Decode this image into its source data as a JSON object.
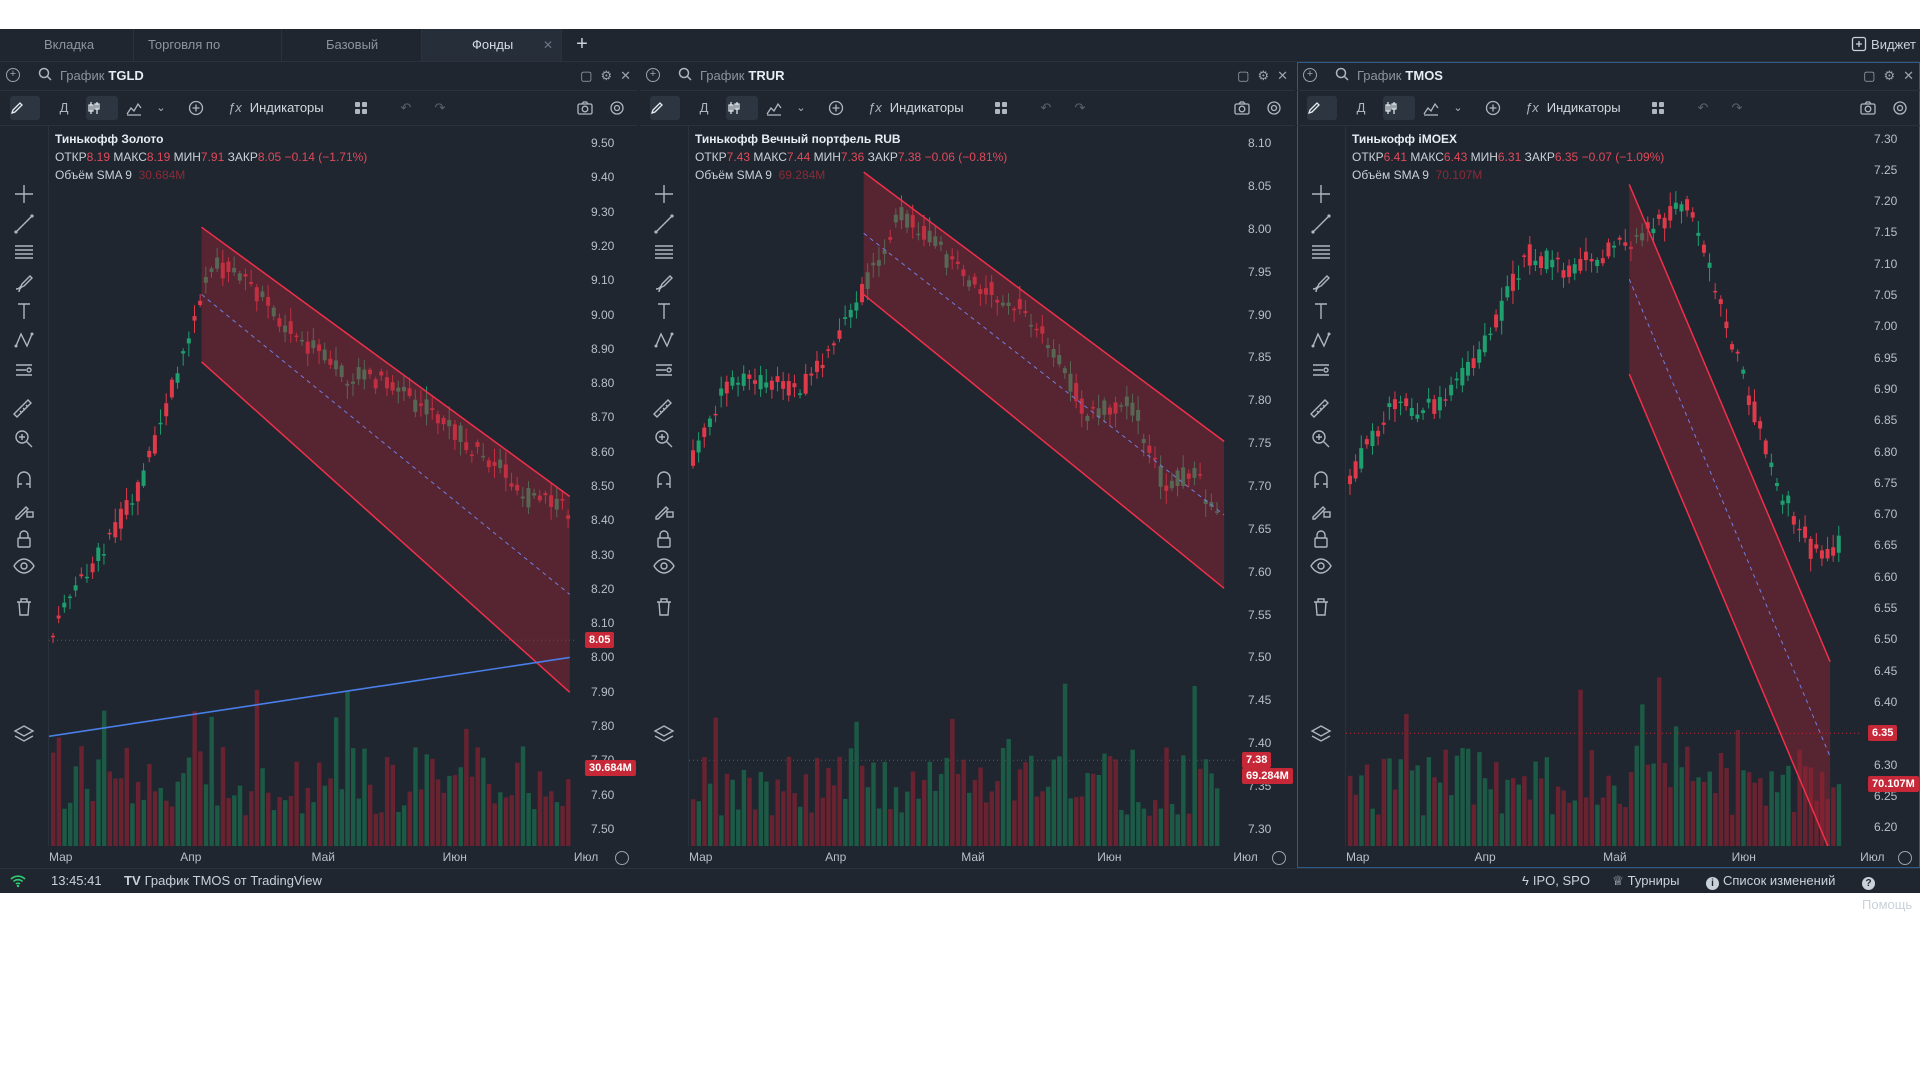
{
  "tabs": [
    {
      "label": "Вкладка"
    },
    {
      "label": "Торговля по инстр..."
    },
    {
      "label": "Базовый"
    },
    {
      "label": "Фонды",
      "active": true
    }
  ],
  "widgets_label": "Виджет",
  "toolbar": {
    "interval": "Д",
    "indicators_label": "Индикаторы"
  },
  "panels": [
    {
      "header_label": "График",
      "ticker": "TGLD",
      "name": "Тинькофф Золото",
      "ohlc": {
        "open_label": "ОТКР",
        "open": "8.19",
        "high_label": "МАКС",
        "high": "8.19",
        "low_label": "МИН",
        "low": "7.91",
        "close_label": "ЗАКР",
        "close": "8.05",
        "change": "−0.14 (−1.71%)"
      },
      "volume_label": "Объём SMA 9",
      "volume_value": "30.684M",
      "price_badge": "8.05",
      "volume_badge": "30.684M",
      "y_ticks": [
        "9.50",
        "9.40",
        "9.30",
        "9.20",
        "9.10",
        "9.00",
        "8.90",
        "8.80",
        "8.70",
        "8.60",
        "8.50",
        "8.40",
        "8.30",
        "8.20",
        "8.10",
        "8.00",
        "7.90",
        "7.80",
        "7.70",
        "7.60",
        "7.50"
      ],
      "x_ticks": [
        "Мар",
        "Апр",
        "Май",
        "Июн",
        "Июл"
      ]
    },
    {
      "header_label": "График",
      "ticker": "TRUR",
      "name": "Тинькофф Вечный портфель RUB",
      "ohlc": {
        "open_label": "ОТКР",
        "open": "7.43",
        "high_label": "МАКС",
        "high": "7.44",
        "low_label": "МИН",
        "low": "7.36",
        "close_label": "ЗАКР",
        "close": "7.38",
        "change": "−0.06 (−0.81%)"
      },
      "volume_label": "Объём SMA 9",
      "volume_value": "69.284M",
      "price_badge": "7.38",
      "volume_badge": "69.284M",
      "y_ticks": [
        "8.10",
        "8.05",
        "8.00",
        "7.95",
        "7.90",
        "7.85",
        "7.80",
        "7.75",
        "7.70",
        "7.65",
        "7.60",
        "7.55",
        "7.50",
        "7.45",
        "7.40",
        "7.35",
        "7.30"
      ],
      "x_ticks": [
        "Мар",
        "Апр",
        "Май",
        "Июн",
        "Июл"
      ]
    },
    {
      "header_label": "График",
      "ticker": "TMOS",
      "name": "Тинькофф iMOEX",
      "ohlc": {
        "open_label": "ОТКР",
        "open": "6.41",
        "high_label": "МАКС",
        "high": "6.43",
        "low_label": "МИН",
        "low": "6.31",
        "close_label": "ЗАКР",
        "close": "6.35",
        "change": "−0.07 (−1.09%)"
      },
      "volume_label": "Объём SMA 9",
      "volume_value": "70.107M",
      "price_badge": "6.35",
      "volume_badge": "70.107M",
      "y_ticks": [
        "7.30",
        "7.25",
        "7.20",
        "7.15",
        "7.10",
        "7.05",
        "7.00",
        "6.95",
        "6.90",
        "6.85",
        "6.80",
        "6.75",
        "6.70",
        "6.65",
        "6.60",
        "6.55",
        "6.50",
        "6.45",
        "6.40",
        "6.35",
        "6.30",
        "6.25",
        "6.20"
      ],
      "x_ticks": [
        "Мар",
        "Апр",
        "Май",
        "Июн",
        "Июл"
      ]
    }
  ],
  "status": {
    "time": "13:45:41",
    "tradingview": "График TMOS от TradingView",
    "ipo": "IPO, SPO",
    "tournaments": "Турниры",
    "changelog": "Список изменений",
    "help": "Помощь"
  },
  "colors": {
    "up": "#1f9e6e",
    "down": "#e0394a",
    "channel_fill": "#9b2335",
    "trend_line": "#4a7ee8",
    "background": "#1f2630"
  }
}
